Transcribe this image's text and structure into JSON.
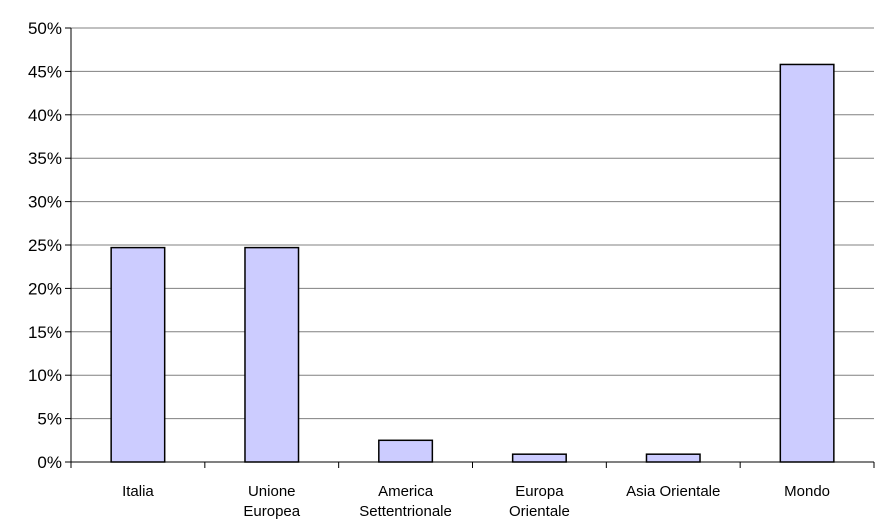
{
  "chart_data": {
    "type": "bar",
    "categories": [
      [
        "Italia"
      ],
      [
        "Unione",
        "Europea"
      ],
      [
        "America",
        "Settentrionale"
      ],
      [
        "Europa",
        "Orientale"
      ],
      [
        "Asia Orientale"
      ],
      [
        "Mondo"
      ]
    ],
    "values": [
      24.7,
      24.7,
      2.5,
      0.9,
      0.9,
      45.8
    ],
    "ylim": [
      0,
      50
    ],
    "yticks": [
      0,
      5,
      10,
      15,
      20,
      25,
      30,
      35,
      40,
      45,
      50
    ],
    "ytick_labels": [
      "0%",
      "5%",
      "10%",
      "15%",
      "20%",
      "25%",
      "30%",
      "35%",
      "40%",
      "45%",
      "50%"
    ],
    "grid": true,
    "legend": "none",
    "bar_color": "#ccccff",
    "title": "",
    "xlabel": "",
    "ylabel": ""
  }
}
